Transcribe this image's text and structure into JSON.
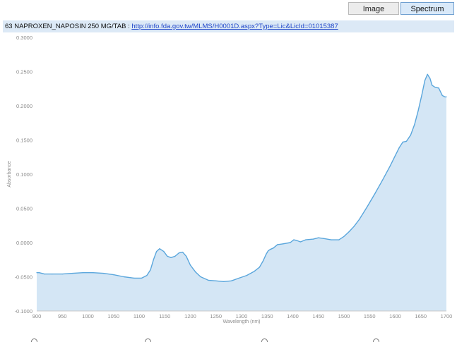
{
  "toolbar": {
    "image_label": "Image",
    "spectrum_label": "Spectrum"
  },
  "header": {
    "title_prefix": "63 NAPROXEN_NAPOSIN 250 MG/TAB : ",
    "link_text": "http://info.fda.gov.tw/MLMS/H0001D.aspx?Type=Lic&LicId=01015387"
  },
  "colors": {
    "series_line": "#5aa6dc",
    "series_fill": "#d4e6f5",
    "active_tab_bg": "#d9e9f9",
    "title_bar_bg": "#dce9f6"
  },
  "chart_data": {
    "type": "area",
    "xlabel": "Wavelength (nm)",
    "ylabel": "Absorbance",
    "xlim": [
      900,
      1700
    ],
    "ylim": [
      -0.1,
      0.3
    ],
    "xticks": [
      "900",
      "950",
      "1000",
      "1050",
      "1100",
      "1150",
      "1200",
      "1250",
      "1300",
      "1350",
      "1400",
      "1450",
      "1500",
      "1550",
      "1600",
      "1650",
      "1700"
    ],
    "yticks": [
      "-0.1000",
      "-0.0500",
      "0.0000",
      "0.0500",
      "0.1000",
      "0.1500",
      "0.2000",
      "0.2500",
      "0.3000"
    ],
    "grid": false,
    "series": [
      {
        "x": [
          900,
          905,
          915,
          930,
          950,
          970,
          990,
          1010,
          1030,
          1050,
          1070,
          1090,
          1105,
          1115,
          1122,
          1128,
          1134,
          1140,
          1148,
          1155,
          1162,
          1170,
          1178,
          1185,
          1192,
          1200,
          1210,
          1220,
          1235,
          1250,
          1265,
          1280,
          1295,
          1310,
          1325,
          1335,
          1342,
          1348,
          1352,
          1356,
          1362,
          1370,
          1380,
          1395,
          1402,
          1408,
          1415,
          1425,
          1440,
          1450,
          1460,
          1475,
          1490,
          1500,
          1510,
          1520,
          1530,
          1545,
          1560,
          1575,
          1590,
          1600,
          1608,
          1615,
          1622,
          1630,
          1638,
          1645,
          1652,
          1658,
          1663,
          1668,
          1672,
          1678,
          1685,
          1692,
          1697,
          1700
        ],
        "values": [
          -0.044,
          -0.044,
          -0.046,
          -0.046,
          -0.046,
          -0.045,
          -0.044,
          -0.044,
          -0.045,
          -0.047,
          -0.05,
          -0.052,
          -0.052,
          -0.048,
          -0.04,
          -0.025,
          -0.013,
          -0.009,
          -0.013,
          -0.02,
          -0.022,
          -0.02,
          -0.015,
          -0.014,
          -0.02,
          -0.033,
          -0.043,
          -0.05,
          -0.055,
          -0.056,
          -0.057,
          -0.056,
          -0.052,
          -0.048,
          -0.042,
          -0.036,
          -0.027,
          -0.017,
          -0.012,
          -0.01,
          -0.008,
          -0.003,
          -0.002,
          0.0,
          0.004,
          0.003,
          0.001,
          0.004,
          0.005,
          0.007,
          0.006,
          0.004,
          0.004,
          0.009,
          0.016,
          0.024,
          0.034,
          0.052,
          0.071,
          0.091,
          0.112,
          0.127,
          0.139,
          0.147,
          0.148,
          0.157,
          0.173,
          0.193,
          0.216,
          0.237,
          0.246,
          0.24,
          0.23,
          0.227,
          0.226,
          0.215,
          0.213,
          0.213
        ]
      }
    ]
  }
}
